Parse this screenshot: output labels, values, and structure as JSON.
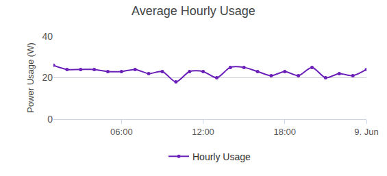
{
  "chart_data": {
    "type": "line",
    "title": "Average Hourly Usage",
    "y_label": "Power Usage (W)",
    "x": [
      1,
      2,
      3,
      4,
      5,
      6,
      7,
      8,
      9,
      10,
      11,
      12,
      13,
      14,
      15,
      16,
      17,
      18,
      19,
      20,
      21,
      22,
      23,
      24
    ],
    "series": [
      {
        "name": "Hourly Usage",
        "color": "#6a1fb8",
        "marker": "circle",
        "line_style": "solid",
        "values": [
          26,
          24,
          24,
          24,
          23,
          23,
          24,
          22,
          23,
          18,
          23,
          23,
          20,
          25,
          25,
          23,
          21,
          23,
          21,
          25,
          20,
          22,
          21,
          24
        ]
      }
    ],
    "xlim": [
      1,
      24
    ],
    "xticks": [
      {
        "value": 6,
        "label": "06:00"
      },
      {
        "value": 12,
        "label": "12:00"
      },
      {
        "value": 18,
        "label": "18:00"
      },
      {
        "value": 24,
        "label": "9. Jun"
      }
    ],
    "ylim": [
      0,
      40
    ],
    "yticks": [
      0,
      20,
      40
    ],
    "grid": true,
    "legend": "bottom"
  }
}
